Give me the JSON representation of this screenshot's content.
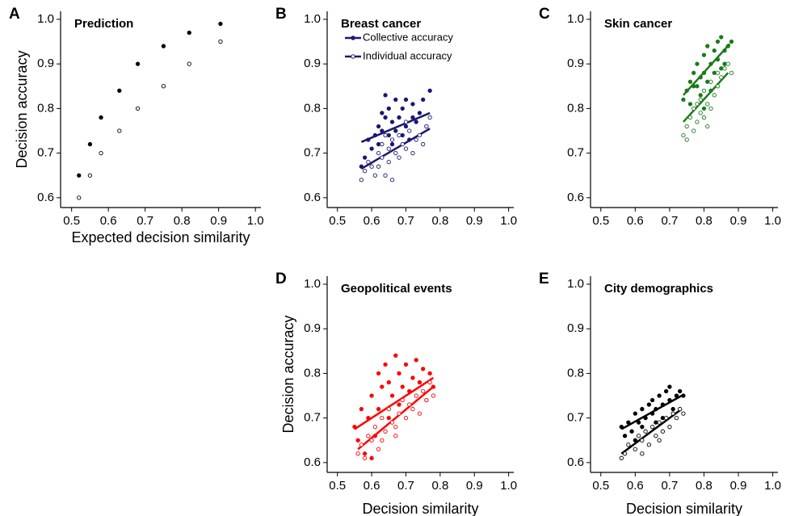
{
  "chart_data": [
    {
      "type": "scatter",
      "panel_label": "A",
      "title": "Prediction",
      "xlabel": "Expected decision similarity",
      "ylabel": "Decision accuracy",
      "xlim": [
        0.47,
        1.015
      ],
      "ylim": [
        0.578,
        1.018
      ],
      "xticks": [
        0.5,
        0.6,
        0.7,
        0.8,
        0.9,
        {
          "value": 1,
          "label": "1.0"
        }
      ],
      "yticks": [
        0.6,
        0.7,
        0.8,
        0.9,
        {
          "value": 1,
          "label": "1.0"
        }
      ],
      "series": [
        {
          "color": "#000000",
          "marker": "filled",
          "x": [
            0.52,
            0.55,
            0.58,
            0.63,
            0.68,
            0.75,
            0.82,
            0.905
          ],
          "y": [
            0.65,
            0.72,
            0.78,
            0.84,
            0.9,
            0.94,
            0.97,
            0.99
          ]
        },
        {
          "color": "#000000",
          "marker": "open",
          "x": [
            0.52,
            0.55,
            0.58,
            0.63,
            0.68,
            0.75,
            0.82,
            0.905
          ],
          "y": [
            0.6,
            0.65,
            0.7,
            0.75,
            0.8,
            0.85,
            0.9,
            0.95
          ]
        }
      ]
    },
    {
      "type": "scatter",
      "panel_label": "B",
      "title": "Breast cancer",
      "legend": "top-left",
      "xlim": [
        0.47,
        1.015
      ],
      "ylim": [
        0.578,
        1.018
      ],
      "xticks": [
        0.5,
        0.6,
        0.7,
        0.8,
        0.9,
        {
          "value": 1,
          "label": "1.0"
        }
      ],
      "yticks": [
        0.6,
        0.7,
        0.8,
        0.9,
        {
          "value": 1,
          "label": "1.0"
        }
      ],
      "series": [
        {
          "name": "Collective accuracy",
          "color": "#191970",
          "marker": "filled",
          "x": [
            0.57,
            0.58,
            0.59,
            0.6,
            0.61,
            0.62,
            0.62,
            0.63,
            0.64,
            0.64,
            0.65,
            0.65,
            0.66,
            0.67,
            0.67,
            0.68,
            0.69,
            0.7,
            0.7,
            0.71,
            0.72,
            0.73,
            0.74,
            0.75,
            0.76,
            0.77,
            0.63,
            0.66,
            0.69,
            0.72
          ],
          "y": [
            0.67,
            0.69,
            0.73,
            0.71,
            0.74,
            0.76,
            0.72,
            0.79,
            0.78,
            0.83,
            0.74,
            0.8,
            0.77,
            0.82,
            0.75,
            0.78,
            0.8,
            0.76,
            0.82,
            0.73,
            0.81,
            0.77,
            0.79,
            0.82,
            0.76,
            0.84,
            0.75,
            0.72,
            0.74,
            0.78
          ],
          "trend": {
            "x": [
              0.57,
              0.77
            ],
            "y": [
              0.725,
              0.79
            ]
          }
        },
        {
          "name": "Individual accuracy",
          "color": "#191970",
          "marker": "open",
          "x": [
            0.57,
            0.58,
            0.59,
            0.6,
            0.61,
            0.62,
            0.63,
            0.63,
            0.64,
            0.65,
            0.65,
            0.66,
            0.67,
            0.68,
            0.68,
            0.69,
            0.7,
            0.71,
            0.72,
            0.73,
            0.74,
            0.75,
            0.76,
            0.77,
            0.62,
            0.66,
            0.7,
            0.64
          ],
          "y": [
            0.64,
            0.66,
            0.68,
            0.67,
            0.65,
            0.7,
            0.69,
            0.72,
            0.65,
            0.71,
            0.68,
            0.73,
            0.7,
            0.69,
            0.74,
            0.72,
            0.71,
            0.75,
            0.7,
            0.73,
            0.74,
            0.72,
            0.76,
            0.78,
            0.67,
            0.64,
            0.77,
            0.74
          ],
          "trend": {
            "x": [
              0.57,
              0.77
            ],
            "y": [
              0.665,
              0.755
            ]
          }
        }
      ]
    },
    {
      "type": "scatter",
      "panel_label": "C",
      "title": "Skin cancer",
      "xlim": [
        0.47,
        1.015
      ],
      "ylim": [
        0.578,
        1.018
      ],
      "xticks": [
        0.5,
        0.6,
        0.7,
        0.8,
        0.9,
        {
          "value": 1,
          "label": "1.0"
        }
      ],
      "yticks": [
        0.6,
        0.7,
        0.8,
        0.9,
        {
          "value": 1,
          "label": "1.0"
        }
      ],
      "series": [
        {
          "color": "#1b7a1b",
          "marker": "filled",
          "x": [
            0.74,
            0.75,
            0.76,
            0.76,
            0.77,
            0.78,
            0.78,
            0.79,
            0.79,
            0.8,
            0.8,
            0.81,
            0.81,
            0.82,
            0.82,
            0.83,
            0.83,
            0.84,
            0.84,
            0.85,
            0.85,
            0.86,
            0.86,
            0.87,
            0.88,
            0.8,
            0.77
          ],
          "y": [
            0.82,
            0.84,
            0.86,
            0.81,
            0.88,
            0.85,
            0.9,
            0.87,
            0.83,
            0.92,
            0.88,
            0.86,
            0.94,
            0.9,
            0.84,
            0.93,
            0.88,
            0.95,
            0.91,
            0.89,
            0.96,
            0.93,
            0.9,
            0.94,
            0.95,
            0.8,
            0.85
          ],
          "trend": {
            "x": [
              0.74,
              0.875
            ],
            "y": [
              0.83,
              0.945
            ]
          }
        },
        {
          "color": "#1b7a1b",
          "marker": "open",
          "x": [
            0.74,
            0.75,
            0.75,
            0.76,
            0.77,
            0.77,
            0.78,
            0.79,
            0.79,
            0.8,
            0.8,
            0.81,
            0.82,
            0.82,
            0.83,
            0.84,
            0.84,
            0.85,
            0.86,
            0.87,
            0.88,
            0.78,
            0.81
          ],
          "y": [
            0.74,
            0.76,
            0.73,
            0.78,
            0.75,
            0.8,
            0.77,
            0.82,
            0.79,
            0.78,
            0.84,
            0.81,
            0.86,
            0.8,
            0.83,
            0.88,
            0.85,
            0.87,
            0.89,
            0.9,
            0.88,
            0.81,
            0.76
          ],
          "trend": {
            "x": [
              0.74,
              0.87
            ],
            "y": [
              0.77,
              0.88
            ]
          }
        }
      ]
    },
    {
      "type": "scatter",
      "panel_label": "D",
      "title": "Geopolitical events",
      "xlabel": "Decision similarity",
      "ylabel": "Decision accuracy",
      "xlim": [
        0.47,
        1.015
      ],
      "ylim": [
        0.578,
        1.018
      ],
      "xticks": [
        0.5,
        0.6,
        0.7,
        0.8,
        0.9,
        {
          "value": 1,
          "label": "1.0"
        }
      ],
      "yticks": [
        0.6,
        0.7,
        0.8,
        0.9,
        {
          "value": 1,
          "label": "1.0"
        }
      ],
      "series": [
        {
          "color": "#ff0000",
          "marker": "filled",
          "x": [
            0.55,
            0.56,
            0.57,
            0.58,
            0.59,
            0.6,
            0.61,
            0.62,
            0.62,
            0.63,
            0.64,
            0.65,
            0.65,
            0.66,
            0.67,
            0.68,
            0.68,
            0.69,
            0.7,
            0.71,
            0.72,
            0.73,
            0.74,
            0.75,
            0.76,
            0.77,
            0.78,
            0.6
          ],
          "y": [
            0.68,
            0.65,
            0.72,
            0.62,
            0.7,
            0.75,
            0.66,
            0.8,
            0.72,
            0.77,
            0.82,
            0.7,
            0.78,
            0.75,
            0.84,
            0.73,
            0.8,
            0.77,
            0.82,
            0.76,
            0.79,
            0.83,
            0.78,
            0.81,
            0.74,
            0.8,
            0.77,
            0.61
          ],
          "trend": {
            "x": [
              0.55,
              0.78
            ],
            "y": [
              0.675,
              0.79
            ]
          }
        },
        {
          "color": "#ff0000",
          "marker": "open",
          "x": [
            0.56,
            0.57,
            0.58,
            0.59,
            0.6,
            0.61,
            0.62,
            0.63,
            0.64,
            0.65,
            0.66,
            0.67,
            0.68,
            0.69,
            0.7,
            0.71,
            0.72,
            0.73,
            0.74,
            0.75,
            0.76,
            0.77,
            0.78,
            0.63,
            0.67
          ],
          "y": [
            0.62,
            0.64,
            0.61,
            0.66,
            0.65,
            0.68,
            0.63,
            0.7,
            0.67,
            0.72,
            0.69,
            0.66,
            0.71,
            0.74,
            0.7,
            0.73,
            0.72,
            0.75,
            0.71,
            0.76,
            0.74,
            0.78,
            0.75,
            0.65,
            0.68
          ],
          "trend": {
            "x": [
              0.56,
              0.78
            ],
            "y": [
              0.63,
              0.77
            ]
          }
        }
      ]
    },
    {
      "type": "scatter",
      "panel_label": "E",
      "title": "City demographics",
      "xlabel": "Decision similarity",
      "xlim": [
        0.47,
        1.015
      ],
      "ylim": [
        0.578,
        1.018
      ],
      "xticks": [
        0.5,
        0.6,
        0.7,
        0.8,
        0.9,
        {
          "value": 1,
          "label": "1.0"
        }
      ],
      "yticks": [
        0.6,
        0.7,
        0.8,
        0.9,
        {
          "value": 1,
          "label": "1.0"
        }
      ],
      "series": [
        {
          "color": "#000000",
          "marker": "filled",
          "x": [
            0.56,
            0.57,
            0.58,
            0.59,
            0.6,
            0.61,
            0.62,
            0.62,
            0.63,
            0.64,
            0.65,
            0.65,
            0.66,
            0.67,
            0.68,
            0.68,
            0.69,
            0.7,
            0.7,
            0.71,
            0.72,
            0.73,
            0.74,
            0.6,
            0.66
          ],
          "y": [
            0.68,
            0.66,
            0.69,
            0.67,
            0.71,
            0.69,
            0.72,
            0.68,
            0.7,
            0.73,
            0.71,
            0.74,
            0.72,
            0.75,
            0.73,
            0.7,
            0.76,
            0.74,
            0.77,
            0.72,
            0.75,
            0.76,
            0.75,
            0.65,
            0.69
          ],
          "trend": {
            "x": [
              0.56,
              0.735
            ],
            "y": [
              0.675,
              0.75
            ]
          }
        },
        {
          "color": "#000000",
          "marker": "open",
          "x": [
            0.56,
            0.57,
            0.58,
            0.6,
            0.61,
            0.62,
            0.63,
            0.64,
            0.65,
            0.66,
            0.67,
            0.68,
            0.69,
            0.7,
            0.71,
            0.72,
            0.73,
            0.74,
            0.62,
            0.67
          ],
          "y": [
            0.61,
            0.62,
            0.64,
            0.63,
            0.66,
            0.65,
            0.67,
            0.64,
            0.68,
            0.66,
            0.69,
            0.67,
            0.7,
            0.68,
            0.71,
            0.7,
            0.72,
            0.71,
            0.62,
            0.65
          ],
          "trend": {
            "x": [
              0.56,
              0.735
            ],
            "y": [
              0.62,
              0.72
            ]
          }
        }
      ]
    }
  ]
}
